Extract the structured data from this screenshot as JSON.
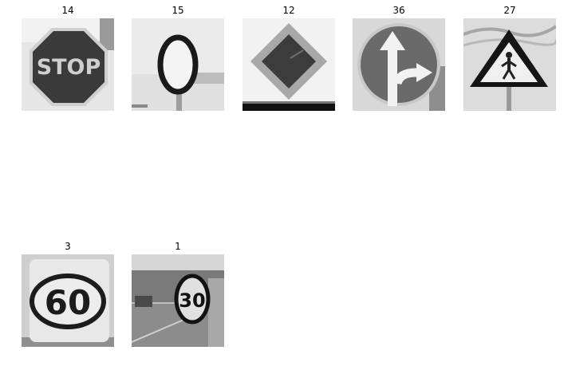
{
  "figure": {
    "panels": [
      {
        "label": "14",
        "sign": "stop",
        "text": "STOP"
      },
      {
        "label": "15",
        "sign": "no-vehicles"
      },
      {
        "label": "12",
        "sign": "priority-road"
      },
      {
        "label": "36",
        "sign": "straight-or-right"
      },
      {
        "label": "27",
        "sign": "pedestrians"
      },
      {
        "label": "3",
        "sign": "speed-limit",
        "text": "60"
      },
      {
        "label": "1",
        "sign": "speed-limit",
        "text": "30"
      }
    ]
  }
}
